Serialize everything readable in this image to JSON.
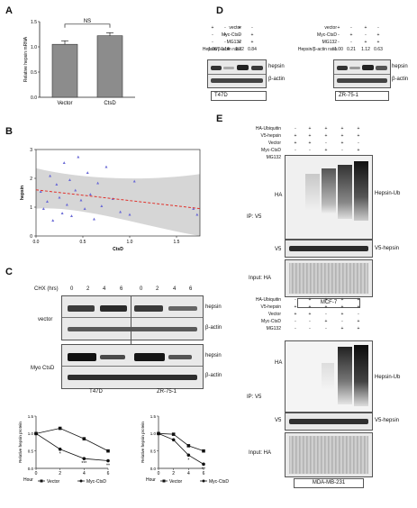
{
  "panelA": {
    "letter": "A",
    "ylabel": "Relative hepsin mRNA",
    "sig": "NS",
    "chart_data": {
      "type": "bar",
      "categories": [
        "Vector",
        "CtsD"
      ],
      "values": [
        1.05,
        1.22
      ],
      "errors": [
        0.07,
        0.06
      ],
      "ylim": [
        0,
        1.5
      ],
      "yticks": [
        "0.0",
        "0.5",
        "1.0",
        "1.5"
      ],
      "ylabel": "Relative hepsin mRNA"
    }
  },
  "panelB": {
    "letter": "B",
    "chart_data": {
      "type": "scatter",
      "xlabel": "CtsD",
      "ylabel": "hepsin",
      "xlim": [
        0,
        1.75
      ],
      "ylim": [
        0,
        3
      ],
      "xticks": [
        "0.0",
        "0.5",
        "1.0",
        "1.5"
      ],
      "yticks": [
        "0",
        "1",
        "2",
        "3"
      ],
      "points": [
        [
          0.05,
          1.55
        ],
        [
          0.08,
          0.95
        ],
        [
          0.12,
          1.2
        ],
        [
          0.15,
          2.1
        ],
        [
          0.18,
          0.55
        ],
        [
          0.22,
          1.8
        ],
        [
          0.25,
          1.35
        ],
        [
          0.28,
          0.8
        ],
        [
          0.3,
          2.55
        ],
        [
          0.33,
          1.1
        ],
        [
          0.36,
          1.95
        ],
        [
          0.38,
          0.7
        ],
        [
          0.42,
          1.6
        ],
        [
          0.45,
          2.75
        ],
        [
          0.48,
          1.25
        ],
        [
          0.52,
          0.95
        ],
        [
          0.55,
          2.2
        ],
        [
          0.58,
          1.45
        ],
        [
          0.62,
          0.6
        ],
        [
          0.66,
          1.85
        ],
        [
          0.7,
          1.05
        ],
        [
          0.75,
          2.4
        ],
        [
          0.82,
          1.3
        ],
        [
          0.9,
          0.85
        ],
        [
          1.0,
          0.75
        ],
        [
          1.05,
          1.9
        ],
        [
          1.68,
          0.95
        ],
        [
          1.72,
          0.75
        ]
      ],
      "fit": {
        "x": [
          0.0,
          1.75
        ],
        "y": [
          1.6,
          0.95
        ]
      }
    }
  },
  "panelC": {
    "letter": "C",
    "chx_label": "CHX (hrs)",
    "timepoints": [
      "0",
      "2",
      "4",
      "6",
      "0",
      "2",
      "4",
      "6"
    ],
    "row_groups": [
      "vector",
      "Myo CtsD"
    ],
    "row_labels": [
      "hepsin",
      "β-actin",
      "hepsin",
      "β-actin"
    ],
    "cells": [
      "T47D",
      "ZR-75-1"
    ],
    "plot1": {
      "chart_data": {
        "type": "line",
        "xlabel": "Hour",
        "ylabel": "Relative hepsin protein",
        "x": [
          0,
          2,
          4,
          6
        ],
        "xlim": [
          0,
          6
        ],
        "ylim": [
          0,
          1.5
        ],
        "yticks": [
          "0.0",
          "0.5",
          "1.0",
          "1.5"
        ],
        "series": [
          {
            "name": "Vector",
            "values": [
              1.0,
              1.15,
              0.85,
              0.5
            ]
          },
          {
            "name": "Myc-CtsD",
            "values": [
              1.0,
              0.55,
              0.28,
              0.22
            ]
          }
        ],
        "annotations": [
          "*",
          "***",
          "**"
        ]
      }
    },
    "plot2": {
      "chart_data": {
        "type": "line",
        "xlabel": "Hour",
        "ylabel": "Relative hepsin protein",
        "x": [
          0,
          2,
          4,
          6
        ],
        "xlim": [
          0,
          6
        ],
        "ylim": [
          0,
          1.5
        ],
        "yticks": [
          "0.0",
          "0.5",
          "1.0",
          "1.5"
        ],
        "series": [
          {
            "name": "Vector",
            "values": [
              1.0,
              0.98,
              0.65,
              0.5
            ]
          },
          {
            "name": "Myc-CtsD",
            "values": [
              1.0,
              0.82,
              0.38,
              0.12
            ]
          }
        ],
        "annotations": [
          "*",
          "**"
        ]
      }
    }
  },
  "panelD": {
    "letter": "D",
    "left": {
      "rows": [
        {
          "label": "vector",
          "vals": [
            "+",
            "-",
            "+",
            "-"
          ]
        },
        {
          "label": "Myc-CtsD",
          "vals": [
            "-",
            "+",
            "-",
            "+"
          ]
        },
        {
          "label": "MG132",
          "vals": [
            "-",
            "-",
            "+",
            "+"
          ]
        },
        {
          "label": "Hepsin/β-actin ratio",
          "vals": [
            "1.00",
            "0.14",
            "1.22",
            "0.84"
          ]
        }
      ],
      "bands": [
        "hepsin",
        "β-actin"
      ],
      "cell": "T47D"
    },
    "right": {
      "rows": [
        {
          "label": "vector",
          "vals": [
            "+",
            "-",
            "+",
            "-"
          ]
        },
        {
          "label": "Myc-CtsD",
          "vals": [
            "-",
            "+",
            "-",
            "+"
          ]
        },
        {
          "label": "MG132",
          "vals": [
            "-",
            "-",
            "+",
            "+"
          ]
        },
        {
          "label": "Hepsin/β-actin ratio",
          "vals": [
            "1.00",
            "0.21",
            "1.12",
            "0.63"
          ]
        }
      ],
      "bands": [
        "hepsin",
        "β-actin"
      ],
      "cell": "ZR-75-1"
    }
  },
  "panelE": {
    "letter": "E",
    "top": {
      "rows": [
        {
          "label": "HA-Ubiquitin",
          "vals": [
            "-",
            "+",
            "+",
            "+",
            "+"
          ]
        },
        {
          "label": "V5-hepsin",
          "vals": [
            "+",
            "+",
            "+",
            "+",
            "+"
          ]
        },
        {
          "label": "Vector",
          "vals": [
            "+",
            "+",
            "-",
            "+",
            "-"
          ]
        },
        {
          "label": "Myc-CtsD",
          "vals": [
            "-",
            "-",
            "+",
            "-",
            "+"
          ]
        },
        {
          "label": "MG132",
          "vals": [
            "-",
            "-",
            "-",
            "+",
            "+"
          ]
        }
      ],
      "ip": "IP: V5",
      "ha": "HA",
      "v5": "V5",
      "ub": "Hepsin-Ub",
      "v5h": "V5-hepsin",
      "input": "Input: HA",
      "cell": "MCF-7"
    },
    "bottom": {
      "rows": [
        {
          "label": "HA-Ubiquitin",
          "vals": [
            "-",
            "+",
            "+",
            "+",
            "+"
          ]
        },
        {
          "label": "V5-hepsin",
          "vals": [
            "+",
            "+",
            "+",
            "+",
            "+"
          ]
        },
        {
          "label": "Vector",
          "vals": [
            "+",
            "+",
            "-",
            "+",
            "-"
          ]
        },
        {
          "label": "Myc-CtsD",
          "vals": [
            "-",
            "-",
            "+",
            "-",
            "+"
          ]
        },
        {
          "label": "MG132",
          "vals": [
            "-",
            "-",
            "-",
            "+",
            "+"
          ]
        }
      ],
      "ip": "IP: V5",
      "ha": "HA",
      "v5": "V5",
      "ub": "Hepsin-Ub",
      "v5h": "V5-hepsin",
      "input": "Input: HA",
      "cell": "MDA-MB-231"
    }
  },
  "colors": {
    "bar_fill": "#8c8c8c",
    "fit_line": "#e0322c",
    "ci": "#cfcfcf",
    "points": "#6b6bd6"
  }
}
